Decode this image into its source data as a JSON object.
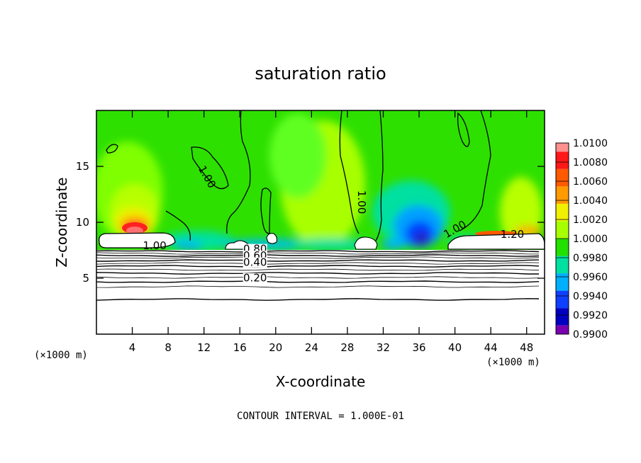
{
  "chart_data": {
    "type": "heatmap",
    "title": "saturation ratio",
    "xlabel": "X-coordinate",
    "ylabel": "Z-coordinate",
    "x_units": "(×1000 m)",
    "x_units_right": "(×1000 m)",
    "xlim": [
      0,
      50
    ],
    "ylim": [
      0,
      20
    ],
    "x_ticks": [
      4,
      8,
      12,
      16,
      20,
      24,
      28,
      32,
      36,
      40,
      44,
      48
    ],
    "y_ticks": [
      5,
      10,
      15
    ],
    "colorbar": {
      "levels": [
        "1.0100",
        "1.0080",
        "1.0060",
        "1.0040",
        "1.0020",
        "1.0000",
        "0.9980",
        "0.9960",
        "0.9940",
        "0.9920",
        "0.9900"
      ],
      "colors": [
        "#ff9090",
        "#ff1818",
        "#ff5a00",
        "#ff9a00",
        "#f0f000",
        "#a8ff00",
        "#22e000",
        "#00e0a0",
        "#00b0ff",
        "#1040ff",
        "#0000c0",
        "#7a00b0"
      ]
    },
    "contour_labels": [
      {
        "text": "1.00",
        "x": 6.5,
        "y": 7.6
      },
      {
        "text": "1.00",
        "x": 12.0,
        "y": 13.9
      },
      {
        "text": "1.00",
        "x": 29.2,
        "y": 11.8
      },
      {
        "text": "1.00",
        "x": 40.2,
        "y": 9.1
      },
      {
        "text": "1.20",
        "x": 46.4,
        "y": 8.6
      },
      {
        "text": "0.80",
        "x": 17.7,
        "y": 7.3
      },
      {
        "text": "0.60",
        "x": 17.7,
        "y": 6.7
      },
      {
        "text": "0.40",
        "x": 17.7,
        "y": 6.1
      },
      {
        "text": "0.20",
        "x": 17.7,
        "y": 4.7
      }
    ],
    "contour_interval_label": "CONTOUR INTERVAL = 1.000E-01"
  }
}
